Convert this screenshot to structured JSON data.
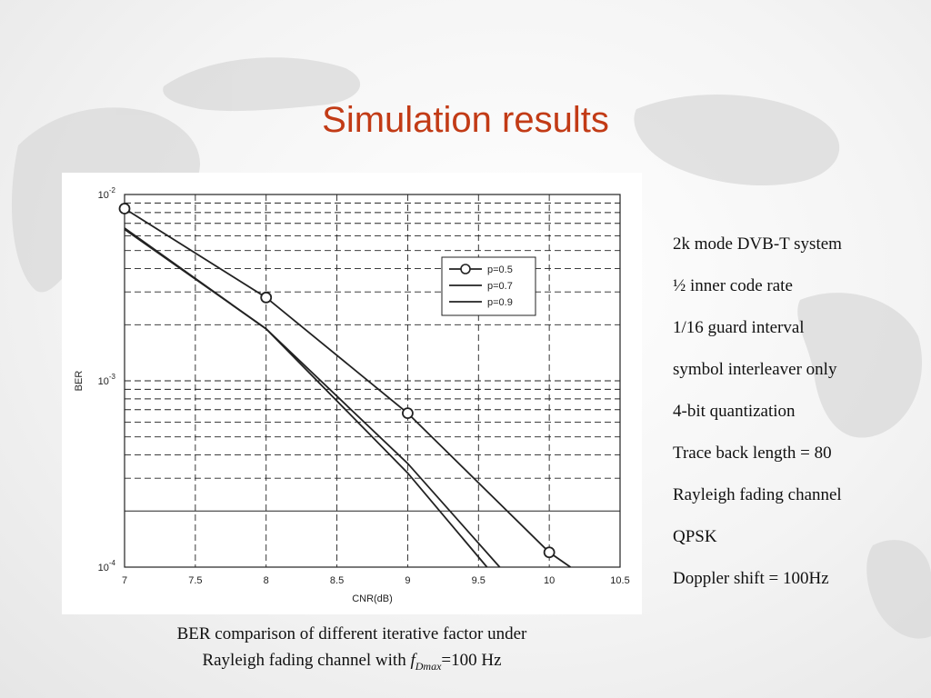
{
  "slide": {
    "title": "Simulation results",
    "caption_line1": "BER comparison of different iterative factor under",
    "caption_line2_prefix": "Rayleigh fading channel with ",
    "caption_symbol": "f",
    "caption_subscript": "Dmax",
    "caption_suffix": "=100 Hz",
    "parameters": [
      "2k mode DVB-T system",
      "½ inner code rate",
      "1/16 guard interval",
      "symbol interleaver only",
      "4-bit quantization",
      "Trace back length = 80",
      "Rayleigh fading channel",
      "QPSK",
      "Doppler shift = 100Hz"
    ]
  },
  "chart_data": {
    "type": "line",
    "xlabel": "CNR(dB)",
    "ylabel": "BER",
    "xlim": [
      7,
      10.5
    ],
    "ylim": [
      0.0001,
      0.01
    ],
    "yscale": "log",
    "grid": true,
    "x_ticks": [
      "7",
      "7.5",
      "8",
      "8.5",
      "9",
      "9.5",
      "10",
      "10.5"
    ],
    "y_ticks": [
      {
        "base": "10",
        "exp": "-2",
        "value": 0.01
      },
      {
        "base": "10",
        "exp": "-3",
        "value": 0.001
      },
      {
        "base": "10",
        "exp": "-4",
        "value": 0.0001
      }
    ],
    "legend_position": "upper-right",
    "series": [
      {
        "name": "p=0.5",
        "marker": "circle",
        "x": [
          7,
          8,
          9,
          10,
          10.15
        ],
        "y": [
          0.0084,
          0.0028,
          0.00067,
          0.00012,
          0.0001
        ]
      },
      {
        "name": "p=0.7",
        "marker": "none",
        "x": [
          7,
          8,
          9,
          9.65
        ],
        "y": [
          0.0065,
          0.0019,
          0.00036,
          0.0001
        ]
      },
      {
        "name": "p=0.9",
        "marker": "none",
        "x": [
          7,
          8,
          9,
          9.56
        ],
        "y": [
          0.0066,
          0.0019,
          0.00032,
          0.0001
        ]
      }
    ]
  }
}
